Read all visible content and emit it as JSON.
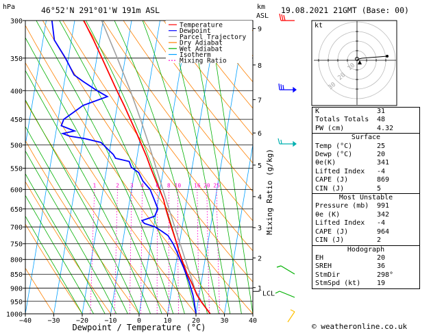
{
  "header": {
    "location": "46°52'N  291°01'W  191m  ASL",
    "datetime": "19.08.2021  21GMT  (Base: 00)"
  },
  "axes": {
    "pressure_unit": "hPa",
    "height_unit_km": "km",
    "height_unit_asl": "ASL",
    "x_label": "Dewpoint / Temperature (°C)",
    "mixing_ratio_label": "Mixing Ratio (g/kg)",
    "lcl_label": "LCL"
  },
  "legend": {
    "items": [
      {
        "label": "Temperature",
        "color": "#ff0000",
        "dash": ""
      },
      {
        "label": "Dewpoint",
        "color": "#0000ff",
        "dash": ""
      },
      {
        "label": "Parcel Trajectory",
        "color": "#a0a0a0",
        "dash": ""
      },
      {
        "label": "Dry Adiabat",
        "color": "#ff8000",
        "dash": ""
      },
      {
        "label": "Wet Adiabat",
        "color": "#00b000",
        "dash": ""
      },
      {
        "label": "Isotherm",
        "color": "#00a0ff",
        "dash": ""
      },
      {
        "label": "Mixing Ratio",
        "color": "#ff00cc",
        "dash": "2,2"
      }
    ]
  },
  "chart_data": {
    "type": "line",
    "x": {
      "min": -40,
      "max": 40,
      "ticks": [
        -40,
        -30,
        -20,
        -10,
        0,
        10,
        20,
        30,
        40
      ]
    },
    "pressure_levels": [
      300,
      350,
      400,
      450,
      500,
      550,
      600,
      650,
      700,
      750,
      800,
      850,
      900,
      950,
      1000
    ],
    "p_range": [
      300,
      1000
    ],
    "height_km_labels": [
      {
        "km": "1",
        "p": 898
      },
      {
        "km": "2",
        "p": 795
      },
      {
        "km": "3",
        "p": 702
      },
      {
        "km": "4",
        "p": 618
      },
      {
        "km": "5",
        "p": 543
      },
      {
        "km": "6",
        "p": 476
      },
      {
        "km": "7",
        "p": 415
      },
      {
        "km": "8",
        "p": 360
      },
      {
        "km": "9",
        "p": 310
      }
    ],
    "lcl_p": 912,
    "mixing_ratio_labels": [
      "1",
      "2",
      "3",
      "4",
      "6",
      "8",
      "10",
      "16",
      "20",
      "25"
    ],
    "mixing_ratio_values": [
      1,
      2,
      3,
      4,
      6,
      8,
      10,
      16,
      20,
      25
    ],
    "mixing_ratio_label_p": 600,
    "series": [
      {
        "name": "Temperature",
        "color": "#ff0000",
        "points": [
          [
            1000,
            25
          ],
          [
            975,
            23
          ],
          [
            950,
            21
          ],
          [
            925,
            19.2
          ],
          [
            900,
            17.8
          ],
          [
            875,
            16.3
          ],
          [
            850,
            14.6
          ],
          [
            825,
            13.2
          ],
          [
            800,
            11.8
          ],
          [
            775,
            10.4
          ],
          [
            750,
            9.1
          ],
          [
            725,
            7.7
          ],
          [
            700,
            6.2
          ],
          [
            675,
            4.7
          ],
          [
            650,
            3.2
          ],
          [
            625,
            1.8
          ],
          [
            600,
            -0.2
          ],
          [
            575,
            -2.3
          ],
          [
            550,
            -4.5
          ],
          [
            525,
            -6.6
          ],
          [
            500,
            -9.1
          ],
          [
            475,
            -11.7
          ],
          [
            450,
            -14.6
          ],
          [
            425,
            -17.6
          ],
          [
            400,
            -21
          ],
          [
            375,
            -24.5
          ],
          [
            350,
            -28.2
          ],
          [
            325,
            -32.2
          ],
          [
            300,
            -36.8
          ]
        ]
      },
      {
        "name": "Dewpoint",
        "color": "#0000ff",
        "points": [
          [
            1000,
            20
          ],
          [
            975,
            19.3
          ],
          [
            950,
            18.6
          ],
          [
            925,
            17.8
          ],
          [
            900,
            16.7
          ],
          [
            875,
            15.6
          ],
          [
            850,
            14.2
          ],
          [
            825,
            12.8
          ],
          [
            800,
            11.2
          ],
          [
            775,
            9.6
          ],
          [
            750,
            7.8
          ],
          [
            725,
            5.5
          ],
          [
            712,
            3.0
          ],
          [
            700,
            0.5
          ],
          [
            690,
            -3.5
          ],
          [
            682,
            -4.5
          ],
          [
            670,
            -0.3
          ],
          [
            650,
            0.4
          ],
          [
            625,
            -1.5
          ],
          [
            600,
            -3.5
          ],
          [
            580,
            -6.5
          ],
          [
            560,
            -8.5
          ],
          [
            548,
            -11.4
          ],
          [
            535,
            -12.5
          ],
          [
            528,
            -17.5
          ],
          [
            520,
            -18.5
          ],
          [
            510,
            -20.5
          ],
          [
            495,
            -23.5
          ],
          [
            487,
            -29.5
          ],
          [
            482,
            -35
          ],
          [
            477,
            -37.5
          ],
          [
            472,
            -33.5
          ],
          [
            462,
            -38.5
          ],
          [
            450,
            -38
          ],
          [
            425,
            -32
          ],
          [
            410,
            -24
          ],
          [
            400,
            -28
          ],
          [
            385,
            -33.5
          ],
          [
            375,
            -37
          ],
          [
            350,
            -41
          ],
          [
            325,
            -46
          ],
          [
            300,
            -48
          ]
        ]
      },
      {
        "name": "Parcel Trajectory",
        "color": "#a0a0a0",
        "points": [
          [
            1000,
            25
          ],
          [
            950,
            21.2
          ],
          [
            912,
            18.6
          ],
          [
            900,
            18.0
          ],
          [
            850,
            15.6
          ],
          [
            800,
            13.0
          ],
          [
            750,
            10.3
          ],
          [
            700,
            7.4
          ],
          [
            650,
            4.3
          ],
          [
            600,
            1.0
          ],
          [
            550,
            -2.6
          ],
          [
            500,
            -6.5
          ],
          [
            450,
            -11.0
          ],
          [
            400,
            -16.3
          ],
          [
            350,
            -22.8
          ],
          [
            300,
            -30.5
          ]
        ]
      }
    ]
  },
  "hodograph": {
    "title": "kt",
    "ring_labels": [
      "10",
      "20",
      "30"
    ]
  },
  "indices": {
    "top": [
      {
        "label": "K",
        "value": "31"
      },
      {
        "label": "Totals Totals",
        "value": "48"
      },
      {
        "label": "PW (cm)",
        "value": "4.32"
      }
    ],
    "surface_title": "Surface",
    "surface": [
      {
        "label": "Temp (°C)",
        "value": "25"
      },
      {
        "label": "Dewp (°C)",
        "value": "20"
      },
      {
        "label": "θe(K)",
        "value": "341"
      },
      {
        "label": "Lifted Index",
        "value": "-4"
      },
      {
        "label": "CAPE (J)",
        "value": "869"
      },
      {
        "label": "CIN (J)",
        "value": "5"
      }
    ],
    "unstable_title": "Most Unstable",
    "unstable": [
      {
        "label": "Pressure (mb)",
        "value": "991"
      },
      {
        "label": "θe (K)",
        "value": "342"
      },
      {
        "label": "Lifted Index",
        "value": "-4"
      },
      {
        "label": "CAPE (J)",
        "value": "964"
      },
      {
        "label": "CIN (J)",
        "value": "2"
      }
    ],
    "hodo_title": "Hodograph",
    "hodo": [
      {
        "label": "EH",
        "value": "20"
      },
      {
        "label": "SREH",
        "value": "36"
      },
      {
        "label": "StmDir",
        "value": "298°"
      },
      {
        "label": "StmSpd (kt)",
        "value": "19"
      }
    ]
  },
  "copyright": "© weatheronline.co.uk",
  "colors": {
    "isotherm": "#00a0ff",
    "dry_adiabat": "#ff8000",
    "wet_adiabat": "#00b000",
    "mixing_ratio": "#ff00cc",
    "wind_barb_upper": "#ff0000",
    "wind_barb_mid": "#0000ff",
    "wind_barb_mid2": "#00b0b0",
    "wind_barb_low": "#00b000",
    "wind_barb_sfc": "#ffd000"
  }
}
